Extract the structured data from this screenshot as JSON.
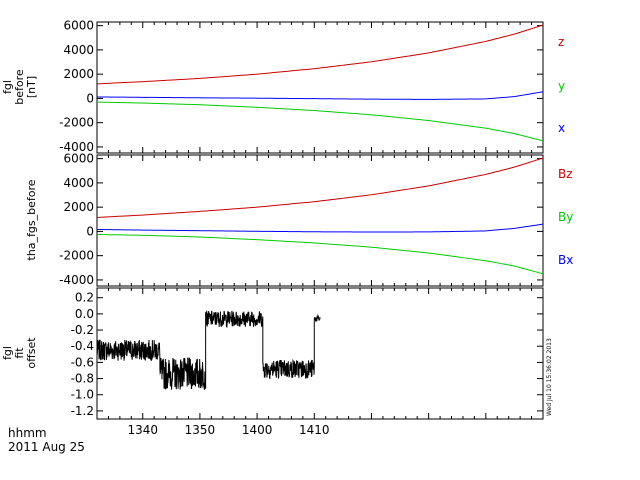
{
  "time_label_line1": "hhmm",
  "time_label_line2": "2011 Aug 25",
  "timestamp_stamp": "Wed Jul 10 15:36:02 2013",
  "colors": {
    "x": "#0000ff",
    "y": "#00cc00",
    "z": "#cc0000",
    "trace": "#000000",
    "axis": "#000000"
  },
  "chart_data": [
    {
      "type": "line",
      "ylabel": [
        "fgl",
        "before",
        "[nT]"
      ],
      "ylim": [
        -4500,
        6300
      ],
      "y_ticks": [
        "-4000",
        "-2000",
        "0",
        "2000",
        "4000",
        "6000"
      ],
      "y_tick_values": [
        -4000,
        -2000,
        0,
        2000,
        4000,
        6000
      ],
      "x_range_minutes": [
        1332,
        1410
      ],
      "x": [
        1332,
        1340,
        1350,
        1360,
        1370,
        1380,
        1390,
        1400,
        1405,
        1410
      ],
      "series": [
        {
          "name": "z",
          "color": "#cc0000",
          "values": [
            1200,
            1380,
            1650,
            2000,
            2450,
            3020,
            3750,
            4700,
            5300,
            6050
          ]
        },
        {
          "name": "y",
          "color": "#00cc00",
          "values": [
            -300,
            -380,
            -520,
            -730,
            -1000,
            -1350,
            -1820,
            -2450,
            -2900,
            -3500
          ]
        },
        {
          "name": "x",
          "color": "#0000ff",
          "values": [
            120,
            90,
            50,
            20,
            -20,
            -60,
            -80,
            -40,
            150,
            550
          ]
        }
      ]
    },
    {
      "type": "line",
      "ylabel": [
        "tha_fgs_before"
      ],
      "ylim": [
        -4500,
        6300
      ],
      "y_ticks": [
        "-4000",
        "-2000",
        "0",
        "2000",
        "4000",
        "6000"
      ],
      "y_tick_values": [
        -4000,
        -2000,
        0,
        2000,
        4000,
        6000
      ],
      "x_range_minutes": [
        1332,
        1410
      ],
      "x": [
        1332,
        1340,
        1350,
        1360,
        1370,
        1380,
        1390,
        1400,
        1405,
        1410
      ],
      "series": [
        {
          "name": "Bz",
          "color": "#cc0000",
          "values": [
            1150,
            1350,
            1650,
            2000,
            2450,
            3020,
            3750,
            4700,
            5300,
            6050
          ]
        },
        {
          "name": "By",
          "color": "#00cc00",
          "values": [
            -250,
            -320,
            -460,
            -680,
            -950,
            -1300,
            -1780,
            -2420,
            -2850,
            -3500
          ]
        },
        {
          "name": "Bx",
          "color": "#0000ff",
          "values": [
            160,
            110,
            60,
            10,
            -30,
            -50,
            -40,
            40,
            250,
            600
          ]
        }
      ]
    },
    {
      "type": "line",
      "ylabel": [
        "fgl",
        "fit",
        "offset"
      ],
      "ylim": [
        -1.3,
        0.32
      ],
      "y_ticks": [
        "-1.2",
        "-1.0",
        "-0.8",
        "-0.6",
        "-0.4",
        "-0.2",
        "0.0",
        "0.2"
      ],
      "y_tick_values": [
        -1.2,
        -1.0,
        -0.8,
        -0.6,
        -0.4,
        -0.2,
        0.0,
        0.2
      ],
      "x_range_minutes": [
        1332,
        1410
      ],
      "x_ticks": [
        "1340",
        "1350",
        "1400",
        "1410"
      ],
      "x_tick_minutes": [
        1340,
        1350,
        1360,
        1370
      ],
      "segments": [
        {
          "x_start": 1332,
          "x_end": 1343,
          "mean": -0.45,
          "amplitude": 0.13
        },
        {
          "x_start": 1343,
          "x_end": 1351,
          "mean": -0.74,
          "amplitude": 0.2
        },
        {
          "x_start": 1351,
          "x_end": 1361,
          "mean": -0.06,
          "amplitude": 0.1
        },
        {
          "x_start": 1361,
          "x_end": 1370,
          "mean": -0.68,
          "amplitude": 0.12
        },
        {
          "x_start": 1370,
          "x_end": 1371,
          "mean": -0.06,
          "amplitude": 0.04
        }
      ]
    }
  ]
}
